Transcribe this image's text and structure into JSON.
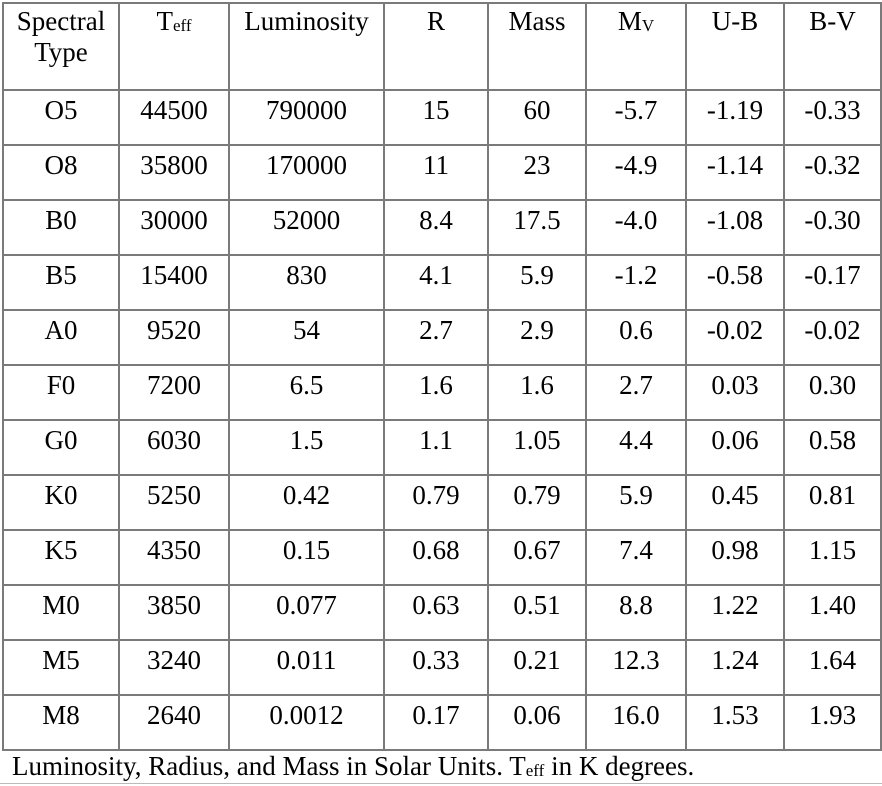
{
  "table": {
    "headers": [
      {
        "main": "Spectral",
        "line2": "Type",
        "sub": ""
      },
      {
        "main": "T",
        "line2": "",
        "sub": "eff"
      },
      {
        "main": "Luminosity",
        "line2": "",
        "sub": ""
      },
      {
        "main": "R",
        "line2": "",
        "sub": ""
      },
      {
        "main": "Mass",
        "line2": "",
        "sub": ""
      },
      {
        "main": "M",
        "line2": "",
        "sub": "V"
      },
      {
        "main": "U-B",
        "line2": "",
        "sub": ""
      },
      {
        "main": "B-V",
        "line2": "",
        "sub": ""
      }
    ],
    "rows": [
      [
        "O5",
        "44500",
        "790000",
        "15",
        "60",
        "-5.7",
        "-1.19",
        "-0.33"
      ],
      [
        "O8",
        "35800",
        "170000",
        "11",
        "23",
        "-4.9",
        "-1.14",
        "-0.32"
      ],
      [
        "B0",
        "30000",
        "52000",
        "8.4",
        "17.5",
        "-4.0",
        "-1.08",
        "-0.30"
      ],
      [
        "B5",
        "15400",
        "830",
        "4.1",
        "5.9",
        "-1.2",
        "-0.58",
        "-0.17"
      ],
      [
        "A0",
        "9520",
        "54",
        "2.7",
        "2.9",
        "0.6",
        "-0.02",
        "-0.02"
      ],
      [
        "F0",
        "7200",
        "6.5",
        "1.6",
        "1.6",
        "2.7",
        "0.03",
        "0.30"
      ],
      [
        "G0",
        "6030",
        "1.5",
        "1.1",
        "1.05",
        "4.4",
        "0.06",
        "0.58"
      ],
      [
        "K0",
        "5250",
        "0.42",
        "0.79",
        "0.79",
        "5.9",
        "0.45",
        "0.81"
      ],
      [
        "K5",
        "4350",
        "0.15",
        "0.68",
        "0.67",
        "7.4",
        "0.98",
        "1.15"
      ],
      [
        "M0",
        "3850",
        "0.077",
        "0.63",
        "0.51",
        "8.8",
        "1.22",
        "1.40"
      ],
      [
        "M5",
        "3240",
        "0.011",
        "0.33",
        "0.21",
        "12.3",
        "1.24",
        "1.64"
      ],
      [
        "M8",
        "2640",
        "0.0012",
        "0.17",
        "0.06",
        "16.0",
        "1.53",
        "1.93"
      ]
    ]
  },
  "caption": {
    "text_before": "Luminosity, Radius, and Mass in Solar Units.  T",
    "sub": "eff",
    "text_after": " in K degrees."
  }
}
